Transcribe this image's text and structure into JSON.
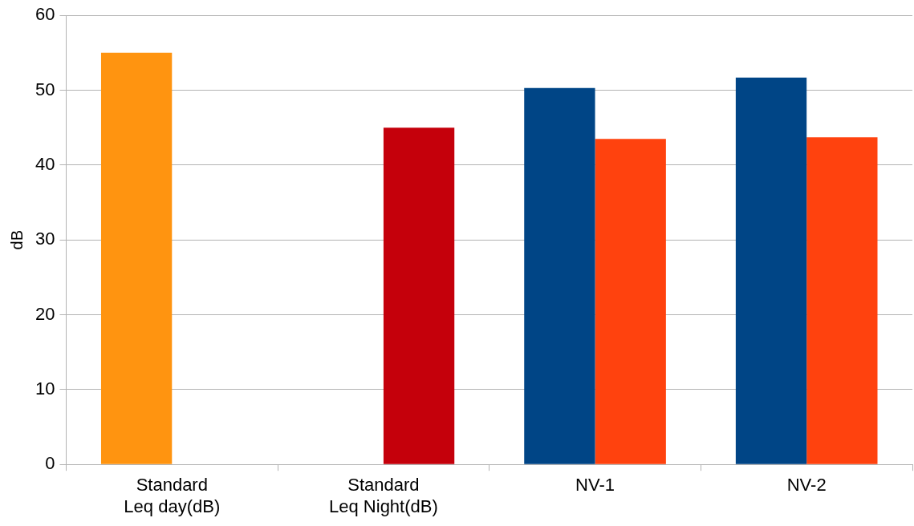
{
  "chart_data": {
    "type": "bar",
    "ylabel": "dB",
    "categories": [
      "Standard Leq day(dB)",
      "Standard Leq Night(dB)",
      "NV-1",
      "NV-2"
    ],
    "series": [
      {
        "colors": [
          "#ff9410",
          "#c5000b",
          "#004586",
          "#004586"
        ],
        "values": [
          55,
          null,
          50.3,
          51.7
        ]
      },
      {
        "colors": [
          "#ff9410",
          "#c5000b",
          "#ff420e",
          "#ff420e"
        ],
        "values": [
          null,
          45,
          43.5,
          43.7
        ]
      }
    ],
    "ylim": [
      0,
      60
    ],
    "yticks": [
      0,
      10,
      20,
      30,
      40,
      50,
      60
    ],
    "grid": "y",
    "legend": false
  }
}
